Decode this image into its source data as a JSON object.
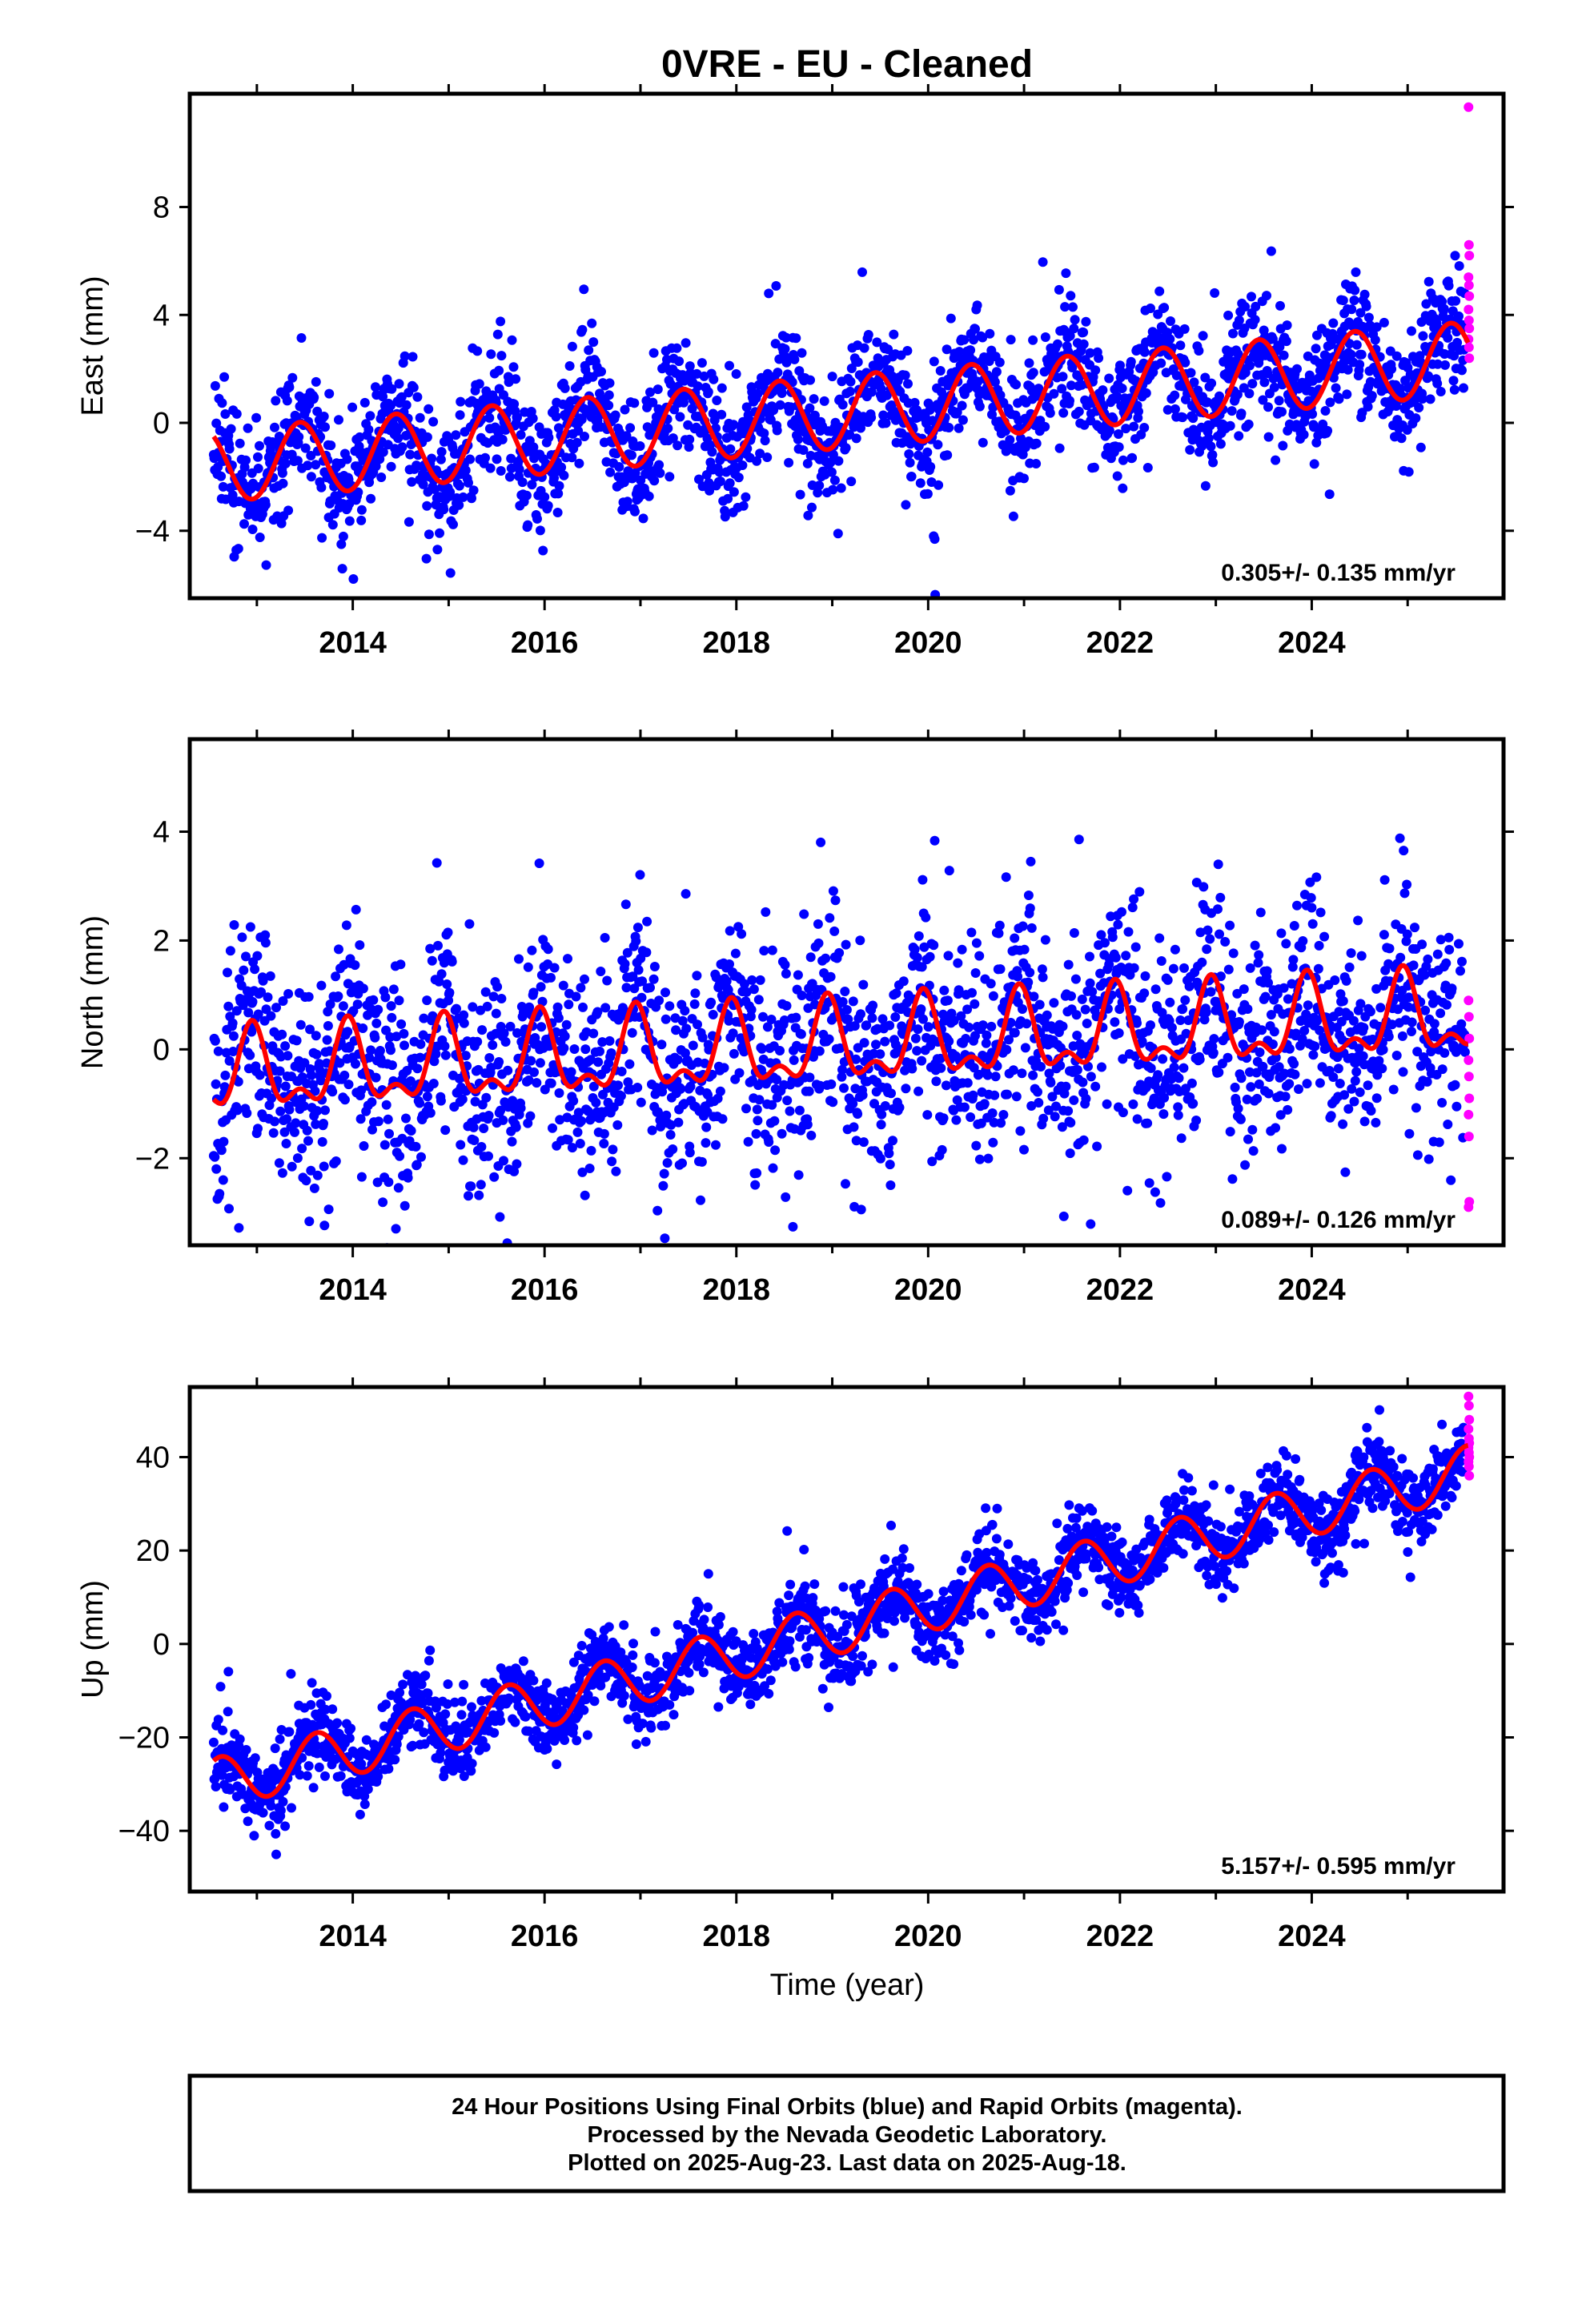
{
  "title": "0VRE  - EU - Cleaned",
  "xlabel": "Time (year)",
  "footer": {
    "line1": "24 Hour Positions Using Final Orbits (blue) and Rapid Orbits (magenta).",
    "line2": "Processed by the Nevada Geodetic Laboratory.",
    "line3": "Plotted on 2025-Aug-23. Last data on 2025-Aug-18."
  },
  "colors": {
    "final_orbits": "#0000ff",
    "rapid_orbits": "#ff00ff",
    "model_fit": "#ff0000",
    "axes": "#000000"
  },
  "chart_data": [
    {
      "type": "scatter",
      "component": "East",
      "ylabel": "East (mm)",
      "xlim": [
        2012.3,
        2026.0
      ],
      "ylim": [
        -6.5,
        12.2
      ],
      "yticks": [
        -4,
        0,
        4,
        8
      ],
      "xticks": [
        2014,
        2016,
        2018,
        2020,
        2022,
        2024
      ],
      "rate_label": "0.305+/- 0.135 mm/yr",
      "trend_fit": {
        "start_year": 2012.55,
        "end_year": 2025.63,
        "value_at_start": -1.6,
        "value_at_end": 2.4
      },
      "annual_amplitude": 1.35,
      "annual_peak_phase": 0.45,
      "semiannual_amplitude": 0.0,
      "scatter_spread": 1.1,
      "rapid_orbit_values": [
        11.7,
        6.6,
        6.2,
        5.4,
        5.1,
        4.7,
        4.2,
        3.8,
        3.5,
        3.1,
        2.8,
        2.4
      ]
    },
    {
      "type": "scatter",
      "component": "North",
      "ylabel": "North (mm)",
      "xlim": [
        2012.3,
        2026.0
      ],
      "ylim": [
        -3.6,
        5.7
      ],
      "yticks": [
        -2,
        0,
        2,
        4
      ],
      "xticks": [
        2014,
        2016,
        2018,
        2020,
        2022,
        2024
      ],
      "rate_label": "0.089+/- 0.126 mm/yr",
      "trend_fit": {
        "start_year": 2012.55,
        "end_year": 2025.63,
        "value_at_start": -0.5,
        "value_at_end": 0.6
      },
      "annual_amplitude": 0.65,
      "annual_peak_phase": 0.95,
      "semiannual_amplitude": 0.35,
      "scatter_spread": 0.95,
      "rapid_orbit_values": [
        0.9,
        0.6,
        0.2,
        -0.2,
        -0.5,
        -0.9,
        -1.2,
        -1.6,
        -2.8,
        -2.9
      ]
    },
    {
      "type": "scatter",
      "component": "Up",
      "ylabel": "Up (mm)",
      "xlim": [
        2012.3,
        2026.0
      ],
      "ylim": [
        -53,
        55
      ],
      "yticks": [
        -40,
        -20,
        0,
        20,
        40
      ],
      "xticks": [
        2014,
        2016,
        2018,
        2020,
        2022,
        2024
      ],
      "rate_label": "5.157+/- 0.595 mm/yr",
      "trend_fit": {
        "start_year": 2012.55,
        "end_year": 2025.63,
        "value_at_start": -30,
        "value_at_end": 37
      },
      "annual_amplitude": 5.5,
      "annual_peak_phase": 0.62,
      "semiannual_amplitude": 0.0,
      "scatter_spread": 4.2,
      "rapid_orbit_values": [
        53,
        51,
        48,
        46,
        44,
        43,
        42,
        41,
        40,
        39,
        38,
        36
      ]
    }
  ]
}
